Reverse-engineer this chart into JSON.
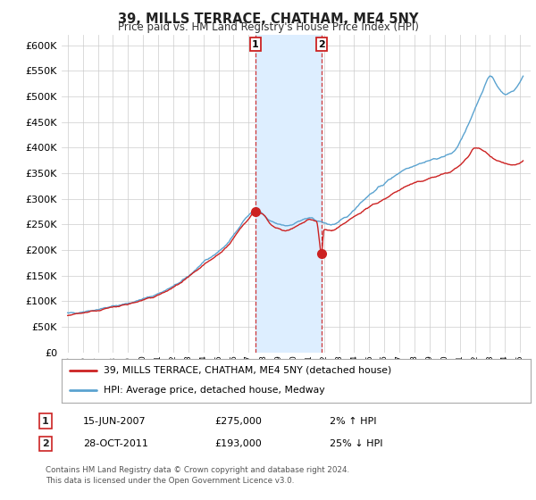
{
  "title": "39, MILLS TERRACE, CHATHAM, ME4 5NY",
  "subtitle": "Price paid vs. HM Land Registry's House Price Index (HPI)",
  "ylim": [
    0,
    620000
  ],
  "yticks": [
    0,
    50000,
    100000,
    150000,
    200000,
    250000,
    300000,
    350000,
    400000,
    450000,
    500000,
    550000,
    600000
  ],
  "sale1_date": 2007.45,
  "sale1_price": 275000,
  "sale1_label": "1",
  "sale2_date": 2011.83,
  "sale2_price": 193000,
  "sale2_label": "2",
  "hpi_line_color": "#5ba3d0",
  "sold_color": "#cc2222",
  "shade_color": "#ddeeff",
  "legend_sold": "39, MILLS TERRACE, CHATHAM, ME4 5NY (detached house)",
  "legend_hpi": "HPI: Average price, detached house, Medway",
  "table_row1": [
    "1",
    "15-JUN-2007",
    "£275,000",
    "2% ↑ HPI"
  ],
  "table_row2": [
    "2",
    "28-OCT-2011",
    "£193,000",
    "25% ↓ HPI"
  ],
  "footnote": "Contains HM Land Registry data © Crown copyright and database right 2024.\nThis data is licensed under the Open Government Licence v3.0.",
  "background_color": "#ffffff",
  "grid_color": "#cccccc"
}
